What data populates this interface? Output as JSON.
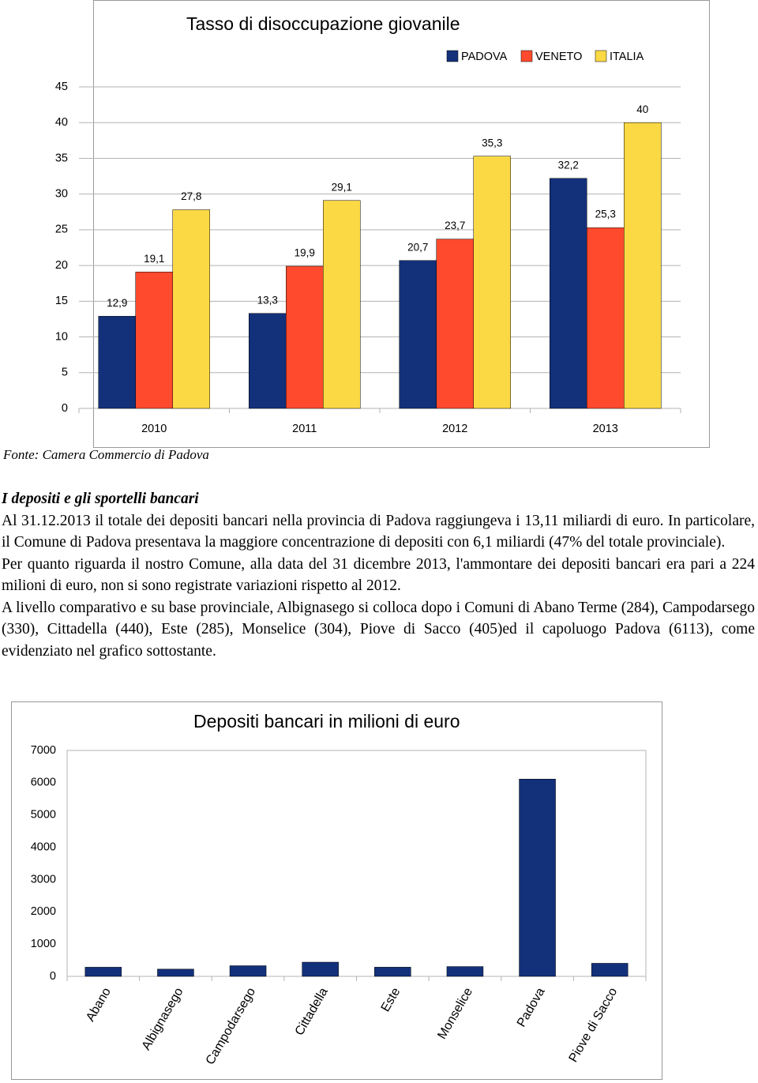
{
  "chart_data": [
    {
      "type": "bar",
      "title": "Tasso di disoccupazione giovanile",
      "categories": [
        "2010",
        "2011",
        "2012",
        "2013"
      ],
      "series": [
        {
          "name": "PADOVA",
          "color": "#13317a",
          "values": [
            12.9,
            13.3,
            20.7,
            32.2
          ],
          "value_labels": [
            "12,9",
            "13,3",
            "20,7",
            "32,2"
          ]
        },
        {
          "name": "VENETO",
          "color": "#ff4a2e",
          "values": [
            19.1,
            19.9,
            23.7,
            25.3
          ],
          "value_labels": [
            "19,1",
            "19,9",
            "23,7",
            "25,3"
          ]
        },
        {
          "name": "ITALIA",
          "color": "#fbd944",
          "values": [
            27.8,
            29.1,
            35.3,
            40
          ],
          "value_labels": [
            "27,8",
            "29,1",
            "35,3",
            "40"
          ]
        }
      ],
      "ylim": [
        0,
        45
      ],
      "yticks": [
        0,
        5,
        10,
        15,
        20,
        25,
        30,
        35,
        40,
        45
      ],
      "grid": true,
      "legend": "top-right"
    },
    {
      "type": "bar",
      "title": "Depositi bancari in milioni di euro",
      "categories": [
        "Abano",
        "Albignasego",
        "Campodarsego",
        "Cittadella",
        "Este",
        "Monselice",
        "Padova",
        "Piove di Sacco"
      ],
      "values": [
        284,
        224,
        330,
        440,
        285,
        304,
        6113,
        405
      ],
      "color": "#13317a",
      "ylim": [
        0,
        7000
      ],
      "yticks": [
        0,
        1000,
        2000,
        3000,
        4000,
        5000,
        6000,
        7000
      ],
      "grid": false
    }
  ],
  "document": {
    "source": "Fonte: Camera Commercio di Padova",
    "heading": "I depositi e gli sportelli bancari",
    "paragraphs": [
      "Al 31.12.2013 il totale dei depositi bancari nella provincia di Padova raggiungeva i 13,11 miliardi di euro. In particolare, il Comune di Padova presentava la maggiore concentrazione di depositi con 6,1 miliardi (47% del totale provinciale).",
      "Per quanto riguarda il nostro Comune, alla data del 31 dicembre 2013, l'ammontare dei depositi bancari era pari a 224 milioni di euro, non si sono registrate variazioni rispetto al 2012.",
      "A livello comparativo e su base provinciale, Albignasego si colloca dopo i Comuni di Abano Terme (284), Campodarsego (330), Cittadella (440), Este (285), Monselice (304), Piove di Sacco (405)ed il capoluogo Padova (6113), come evidenziato nel grafico sottostante."
    ]
  }
}
